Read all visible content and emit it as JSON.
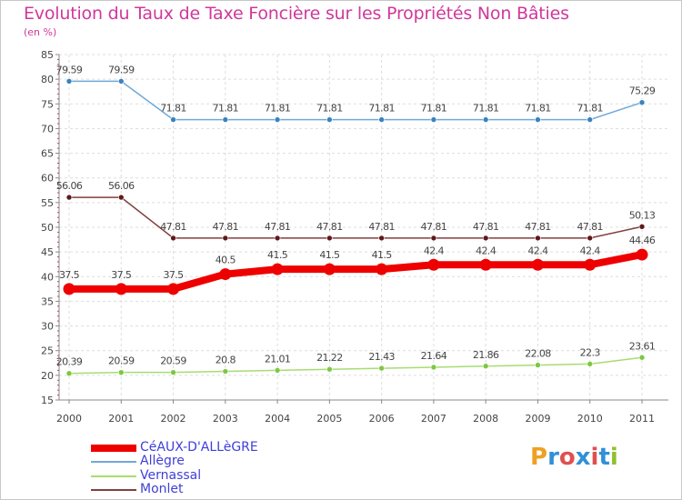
{
  "title": "Evolution du Taux de Taxe Foncière sur les Propriétés Non Bâties",
  "subtitle": "(en %)",
  "logo": {
    "text": "Proxiti",
    "letters": [
      {
        "ch": "P",
        "color": "#f0a020"
      },
      {
        "ch": "r",
        "color": "#3090d8"
      },
      {
        "ch": "o",
        "color": "#e05050"
      },
      {
        "ch": "x",
        "color": "#3090d8"
      },
      {
        "ch": "i",
        "color": "#e05050"
      },
      {
        "ch": "t",
        "color": "#3090d8"
      },
      {
        "ch": "i",
        "color": "#90c030"
      }
    ]
  },
  "chart_data": {
    "type": "line",
    "title": "Evolution du Taux de Taxe Foncière sur les Propriétés Non Bâties",
    "ylabel": "(en %)",
    "xlabel": "",
    "ylim": [
      15,
      85
    ],
    "yticks": [
      15,
      20,
      25,
      30,
      35,
      40,
      45,
      50,
      55,
      60,
      65,
      70,
      75,
      80,
      85
    ],
    "grid": true,
    "legend_position": "bottom-left",
    "categories": [
      "2000",
      "2001",
      "2002",
      "2003",
      "2004",
      "2005",
      "2006",
      "2007",
      "2008",
      "2009",
      "2010",
      "2011"
    ],
    "series": [
      {
        "name": "CéAUX-D'ALLèGRE",
        "color": "#ee0000",
        "marker_color": "#ee0000",
        "width": 8,
        "values": [
          37.5,
          37.5,
          37.5,
          40.5,
          41.5,
          41.5,
          41.5,
          42.4,
          42.4,
          42.4,
          42.4,
          44.46
        ],
        "labels": [
          "37.5",
          "37.5",
          "37.5",
          "40.5",
          "41.5",
          "41.5",
          "41.5",
          "42.4",
          "42.4",
          "42.4",
          "42.4",
          "44.46"
        ]
      },
      {
        "name": "Allègre",
        "color": "#70a8d8",
        "marker_color": "#3a82c0",
        "width": 1.5,
        "values": [
          79.59,
          79.59,
          71.81,
          71.81,
          71.81,
          71.81,
          71.81,
          71.81,
          71.81,
          71.81,
          71.81,
          75.29
        ],
        "labels": [
          "79.59",
          "79.59",
          "71.81",
          "71.81",
          "71.81",
          "71.81",
          "71.81",
          "71.81",
          "71.81",
          "71.81",
          "71.81",
          "75.29"
        ]
      },
      {
        "name": "Vernassal",
        "color": "#a8dc70",
        "marker_color": "#7cc840",
        "width": 1.5,
        "values": [
          20.39,
          20.59,
          20.59,
          20.8,
          21.01,
          21.22,
          21.43,
          21.64,
          21.86,
          22.08,
          22.3,
          23.61
        ],
        "labels": [
          "20.39",
          "20.59",
          "20.59",
          "20.8",
          "21.01",
          "21.22",
          "21.43",
          "21.64",
          "21.86",
          "22.08",
          "22.3",
          "23.61"
        ]
      },
      {
        "name": "Monlet",
        "color": "#804040",
        "marker_color": "#601818",
        "width": 1.5,
        "values": [
          56.06,
          56.06,
          47.81,
          47.81,
          47.81,
          47.81,
          47.81,
          47.81,
          47.81,
          47.81,
          47.81,
          50.13
        ],
        "labels": [
          "56.06",
          "56.06",
          "47.81",
          "47.81",
          "47.81",
          "47.81",
          "47.81",
          "47.81",
          "47.81",
          "47.81",
          "47.81",
          "50.13"
        ]
      }
    ]
  }
}
